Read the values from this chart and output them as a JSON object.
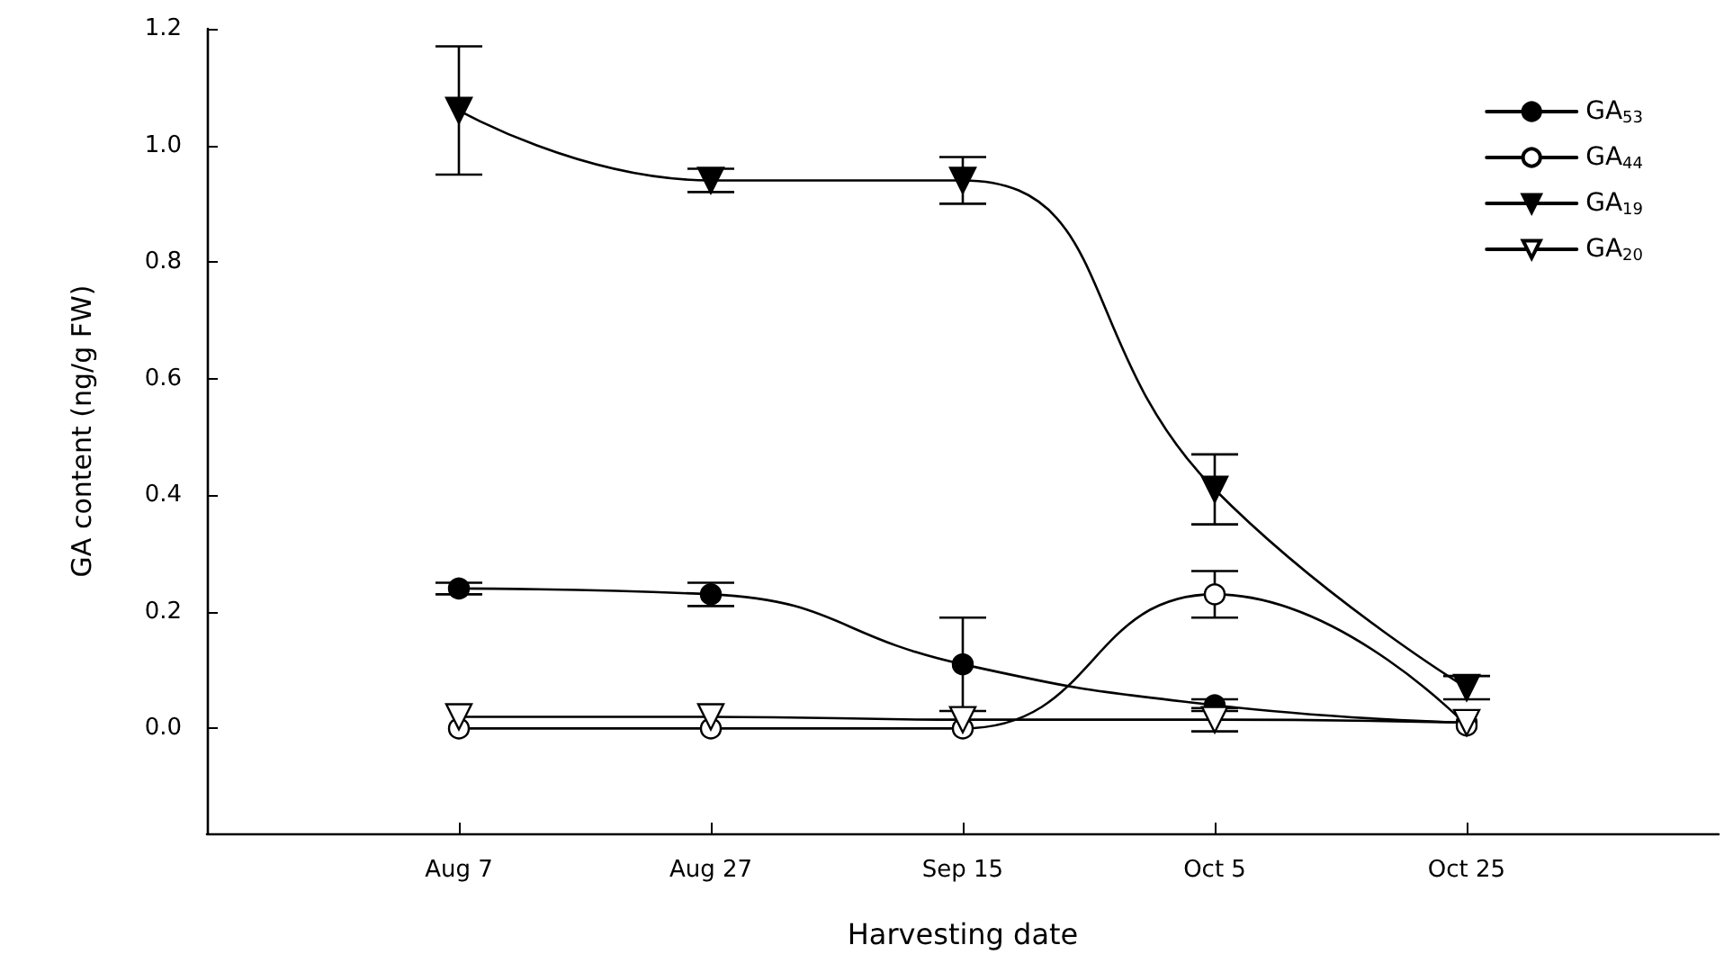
{
  "chart_data": {
    "type": "line",
    "xlabel": "Harvesting date",
    "ylabel": "GA content (ng/g FW)",
    "categories": [
      "Aug 7",
      "Aug 27",
      "Sep 15",
      "Oct 5",
      "Oct 25"
    ],
    "series": [
      {
        "name": "GA$_{53}$",
        "color": "#000000",
        "marker": "circle",
        "values": [
          0.24,
          0.23,
          0.11,
          0.04,
          0.01
        ],
        "errors": [
          0.01,
          0.02,
          0.08,
          0.01,
          null
        ]
      },
      {
        "name": "GA$_{44}$",
        "color": "#000000",
        "marker": "circle",
        "values": [
          0.0,
          0.0,
          0.0,
          0.23,
          0.005
        ],
        "errors": [
          null,
          null,
          null,
          0.04,
          null
        ]
      },
      {
        "name": "GA$_{19}$",
        "color": "#000000",
        "marker": "triangle",
        "values": [
          1.06,
          0.94,
          0.94,
          0.41,
          0.07
        ],
        "errors": [
          0.11,
          0.02,
          0.04,
          0.06,
          0.02
        ]
      },
      {
        "name": "GA$_{20}$",
        "color": "#000000",
        "marker": "triangle",
        "values": [
          0.02,
          0.02,
          0.015,
          0.015,
          0.01
        ],
        "errors": [
          null,
          null,
          null,
          0.02,
          null
        ]
      }
    ],
    "ylim": [
      -0.18,
      1.2
    ],
    "yticks": [
      {
        "value": 0,
        "label": "0.0"
      },
      0.2,
      0.4,
      0.6,
      0.8,
      {
        "value": 1,
        "label": "1.0"
      },
      1.2
    ],
    "grid": false,
    "legend": "top right",
    "line_style": "solid"
  }
}
